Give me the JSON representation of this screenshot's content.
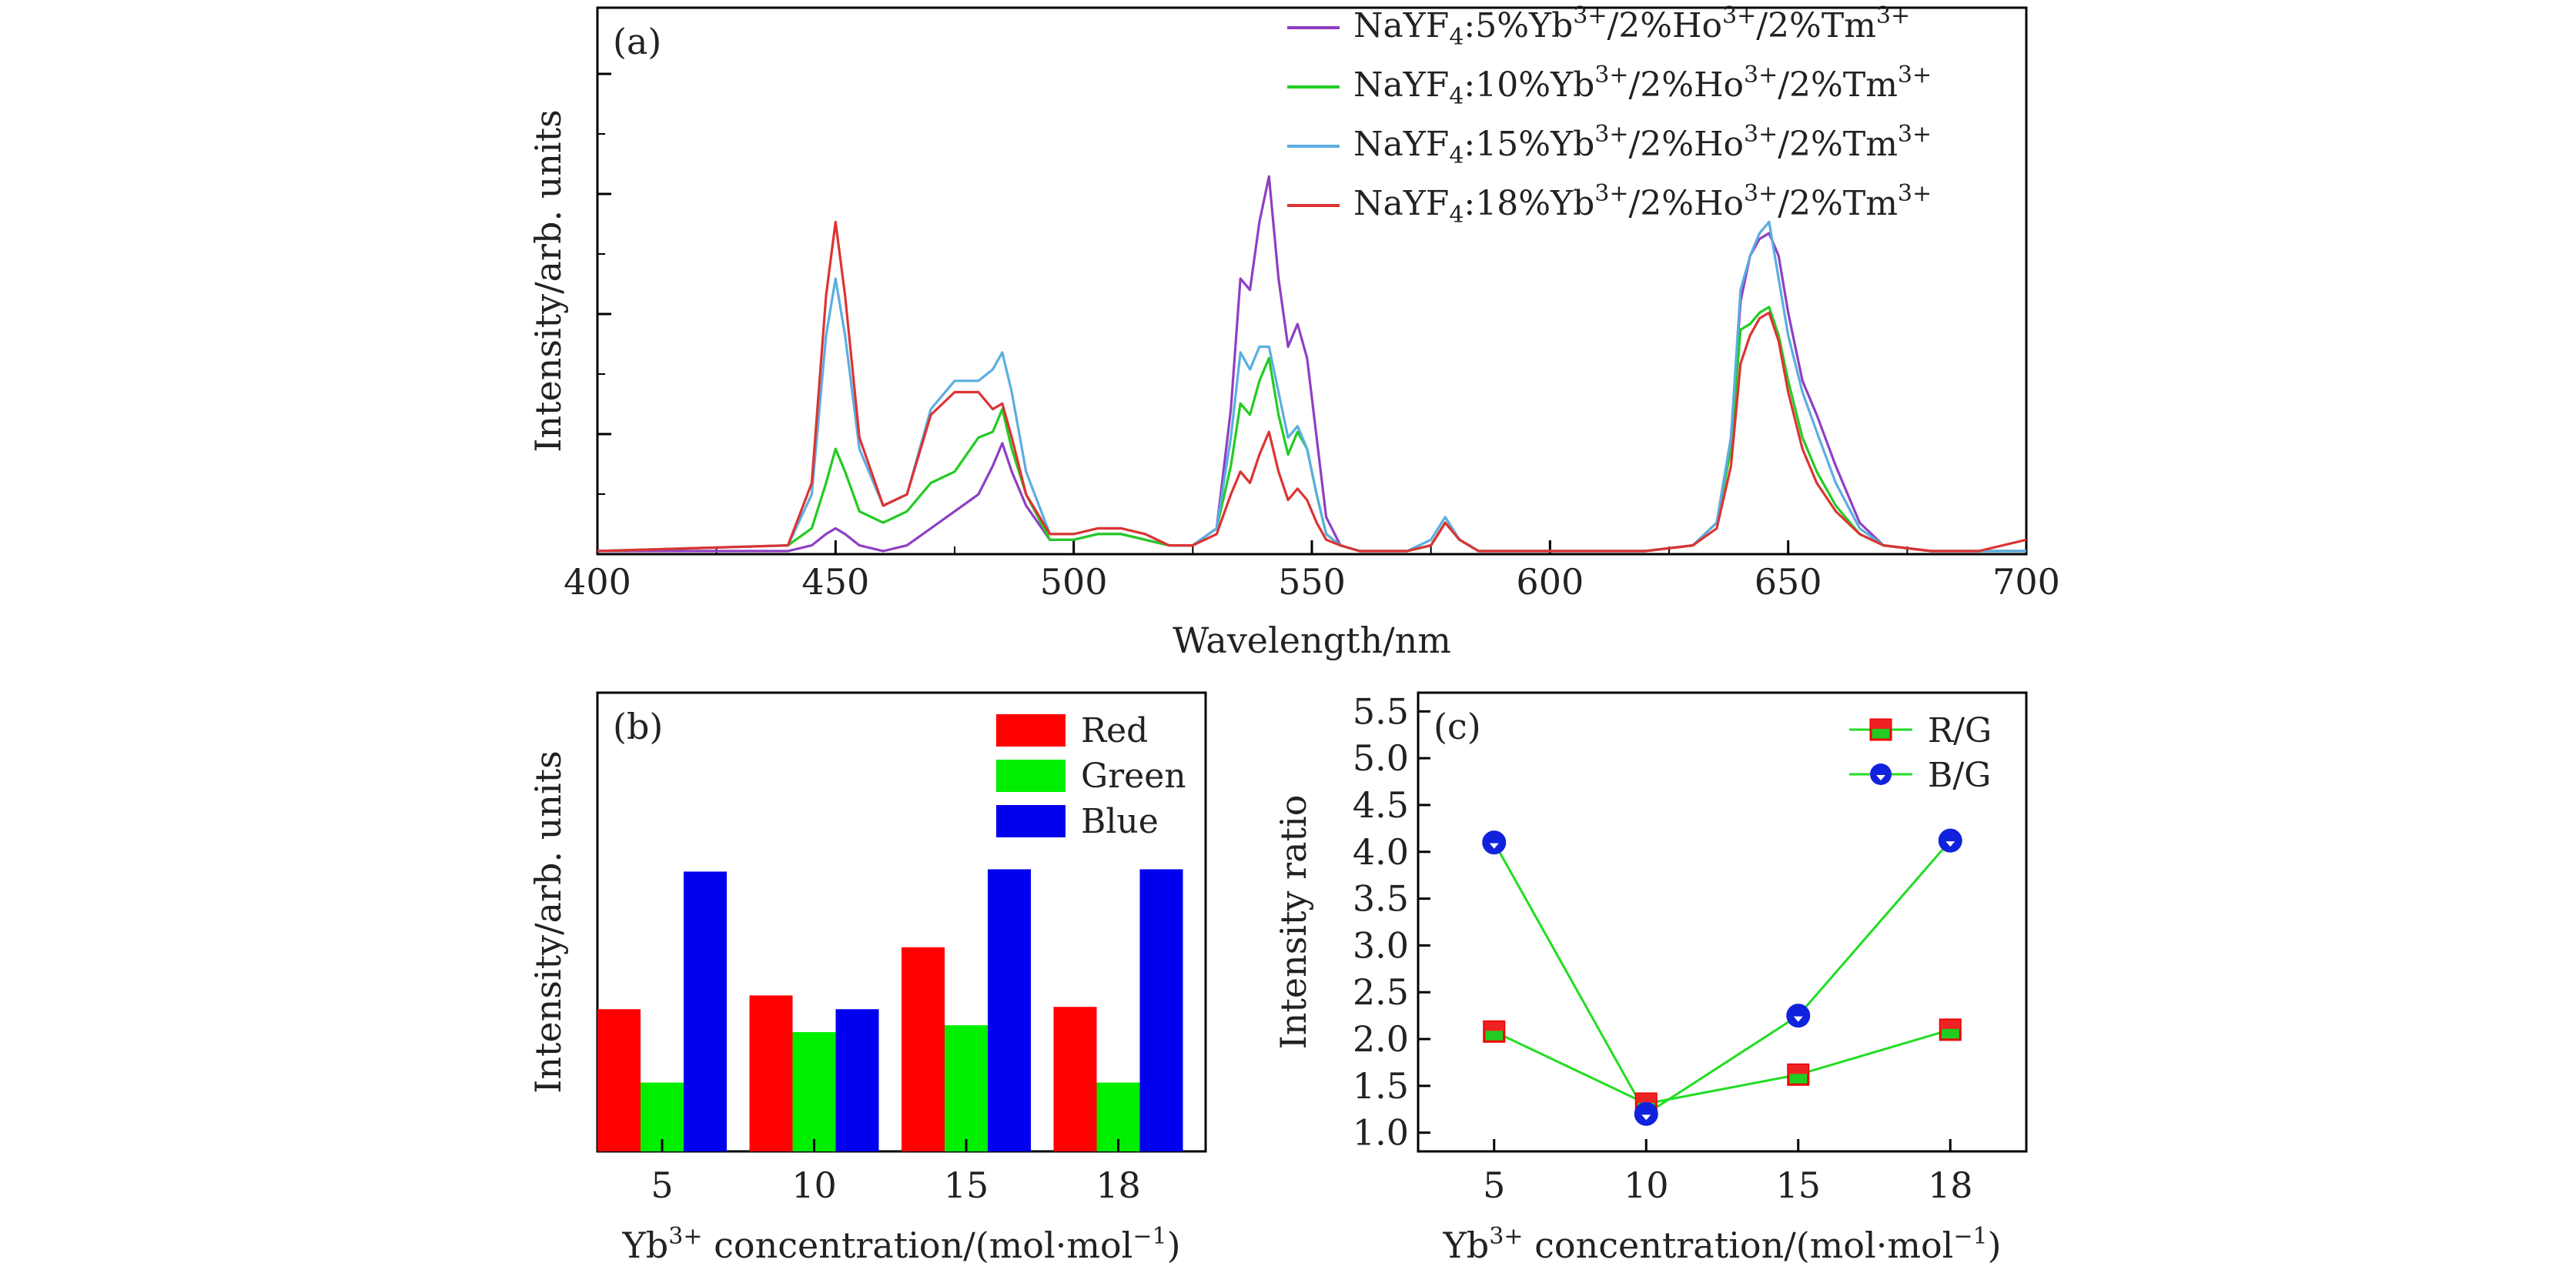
{
  "chart_data": [
    {
      "panel": "(a)",
      "type": "line",
      "xlabel": "Wavelength/nm",
      "ylabel": "Intensity/arb. units",
      "xlim": [
        400,
        700
      ],
      "ylim": [
        0,
        1.0
      ],
      "xticks": [
        400,
        450,
        500,
        550,
        600,
        650,
        700
      ],
      "legend_position": "top-right",
      "series": [
        {
          "name": "NaYF4:5%Yb3+/2%Ho3+/2%Tm3+",
          "legend": {
            "base": "NaYF",
            "sub": "4",
            "mid1": ":5%Yb",
            "sup1": "3+",
            "mid2": "/2%Ho",
            "sup2": "3+",
            "mid3": "/2%Tm",
            "sup3": "3+"
          },
          "color": "#8e3fc4",
          "x": [
            400,
            440,
            445,
            448,
            450,
            452,
            455,
            460,
            465,
            470,
            475,
            480,
            483,
            485,
            487,
            490,
            495,
            500,
            505,
            510,
            515,
            520,
            525,
            530,
            533,
            535,
            537,
            539,
            541,
            543,
            545,
            547,
            549,
            551,
            553,
            556,
            560,
            570,
            575,
            578,
            581,
            585,
            590,
            600,
            620,
            630,
            635,
            638,
            640,
            642,
            644,
            646,
            648,
            650,
            653,
            656,
            660,
            665,
            670,
            680,
            690,
            700
          ],
          "y": [
            0.0,
            0.0,
            0.01,
            0.03,
            0.04,
            0.03,
            0.01,
            0.0,
            0.01,
            0.04,
            0.07,
            0.1,
            0.15,
            0.19,
            0.14,
            0.08,
            0.02,
            0.02,
            0.03,
            0.03,
            0.02,
            0.01,
            0.01,
            0.04,
            0.25,
            0.48,
            0.46,
            0.58,
            0.66,
            0.48,
            0.36,
            0.4,
            0.34,
            0.2,
            0.06,
            0.01,
            0.0,
            0.0,
            0.01,
            0.05,
            0.02,
            0.0,
            0.0,
            0.0,
            0.0,
            0.01,
            0.05,
            0.2,
            0.44,
            0.52,
            0.55,
            0.56,
            0.52,
            0.42,
            0.3,
            0.24,
            0.15,
            0.05,
            0.01,
            0.0,
            0.0,
            0.0
          ]
        },
        {
          "name": "NaYF4:10%Yb3+/2%Ho3+/2%Tm3+",
          "legend": {
            "base": "NaYF",
            "sub": "4",
            "mid1": ":10%Yb",
            "sup1": "3+",
            "mid2": "/2%Ho",
            "sup2": "3+",
            "mid3": "/2%Tm",
            "sup3": "3+"
          },
          "color": "#22cc22",
          "x": [
            400,
            440,
            445,
            448,
            450,
            452,
            455,
            460,
            465,
            470,
            475,
            480,
            483,
            485,
            487,
            490,
            495,
            500,
            505,
            510,
            515,
            520,
            525,
            530,
            533,
            535,
            537,
            539,
            541,
            543,
            545,
            547,
            549,
            551,
            553,
            556,
            560,
            570,
            575,
            578,
            581,
            585,
            590,
            600,
            620,
            630,
            635,
            638,
            640,
            642,
            644,
            646,
            648,
            650,
            653,
            656,
            660,
            665,
            670,
            680,
            690,
            700
          ],
          "y": [
            0.0,
            0.01,
            0.04,
            0.12,
            0.18,
            0.14,
            0.07,
            0.05,
            0.07,
            0.12,
            0.14,
            0.2,
            0.21,
            0.25,
            0.18,
            0.1,
            0.02,
            0.02,
            0.03,
            0.03,
            0.02,
            0.01,
            0.01,
            0.04,
            0.15,
            0.26,
            0.24,
            0.3,
            0.34,
            0.24,
            0.17,
            0.21,
            0.18,
            0.1,
            0.03,
            0.01,
            0.0,
            0.0,
            0.01,
            0.05,
            0.02,
            0.0,
            0.0,
            0.0,
            0.0,
            0.01,
            0.05,
            0.18,
            0.39,
            0.4,
            0.42,
            0.43,
            0.38,
            0.3,
            0.2,
            0.14,
            0.08,
            0.03,
            0.01,
            0.0,
            0.0,
            0.0
          ]
        },
        {
          "name": "NaYF4:15%Yb3+/2%Ho3+/2%Tm3+",
          "legend": {
            "base": "NaYF",
            "sub": "4",
            "mid1": ":15%Yb",
            "sup1": "3+",
            "mid2": "/2%Ho",
            "sup2": "3+",
            "mid3": "/2%Tm",
            "sup3": "3+"
          },
          "color": "#5aaee0",
          "x": [
            400,
            440,
            445,
            448,
            450,
            452,
            455,
            460,
            465,
            470,
            475,
            480,
            483,
            485,
            487,
            490,
            495,
            500,
            505,
            510,
            515,
            520,
            525,
            530,
            533,
            535,
            537,
            539,
            541,
            543,
            545,
            547,
            549,
            551,
            553,
            556,
            560,
            570,
            575,
            578,
            581,
            585,
            590,
            600,
            620,
            630,
            635,
            638,
            640,
            642,
            644,
            646,
            648,
            650,
            653,
            656,
            660,
            665,
            670,
            680,
            690,
            700
          ],
          "y": [
            0.0,
            0.01,
            0.1,
            0.38,
            0.48,
            0.38,
            0.18,
            0.08,
            0.1,
            0.25,
            0.3,
            0.3,
            0.32,
            0.35,
            0.28,
            0.14,
            0.03,
            0.03,
            0.04,
            0.04,
            0.03,
            0.01,
            0.01,
            0.04,
            0.2,
            0.35,
            0.32,
            0.36,
            0.36,
            0.28,
            0.2,
            0.22,
            0.18,
            0.1,
            0.03,
            0.01,
            0.0,
            0.0,
            0.02,
            0.06,
            0.02,
            0.0,
            0.0,
            0.0,
            0.0,
            0.01,
            0.05,
            0.2,
            0.46,
            0.52,
            0.56,
            0.58,
            0.48,
            0.38,
            0.28,
            0.21,
            0.12,
            0.04,
            0.01,
            0.0,
            0.0,
            0.0
          ]
        },
        {
          "name": "NaYF4:18%Yb3+/2%Ho3+/2%Tm3+",
          "legend": {
            "base": "NaYF",
            "sub": "4",
            "mid1": ":18%Yb",
            "sup1": "3+",
            "mid2": "/2%Ho",
            "sup2": "3+",
            "mid3": "/2%Tm",
            "sup3": "3+"
          },
          "color": "#dd3333",
          "x": [
            400,
            440,
            445,
            448,
            450,
            452,
            455,
            460,
            465,
            470,
            475,
            480,
            483,
            485,
            487,
            490,
            495,
            500,
            505,
            510,
            515,
            520,
            525,
            530,
            533,
            535,
            537,
            539,
            541,
            543,
            545,
            547,
            549,
            551,
            553,
            556,
            560,
            570,
            575,
            578,
            581,
            585,
            590,
            600,
            620,
            630,
            635,
            638,
            640,
            642,
            644,
            646,
            648,
            650,
            653,
            656,
            660,
            665,
            670,
            680,
            690,
            700
          ],
          "y": [
            0.0,
            0.01,
            0.12,
            0.45,
            0.58,
            0.45,
            0.2,
            0.08,
            0.1,
            0.24,
            0.28,
            0.28,
            0.25,
            0.26,
            0.2,
            0.1,
            0.03,
            0.03,
            0.04,
            0.04,
            0.03,
            0.01,
            0.01,
            0.03,
            0.1,
            0.14,
            0.12,
            0.17,
            0.21,
            0.14,
            0.09,
            0.11,
            0.09,
            0.05,
            0.02,
            0.01,
            0.0,
            0.0,
            0.01,
            0.05,
            0.02,
            0.0,
            0.0,
            0.0,
            0.0,
            0.01,
            0.04,
            0.15,
            0.33,
            0.38,
            0.41,
            0.42,
            0.37,
            0.28,
            0.18,
            0.12,
            0.07,
            0.03,
            0.01,
            0.0,
            0.0,
            0.02
          ]
        }
      ]
    },
    {
      "panel": "(b)",
      "type": "bar",
      "xlabel": {
        "base": "Yb",
        "sup": "3+",
        "rest": " concentration/(mol·mol",
        "exp": "−1",
        "close": ")"
      },
      "ylabel": "Intensity/arb. units",
      "categories": [
        "5",
        "10",
        "15",
        "18"
      ],
      "ylim": [
        0,
        1.0
      ],
      "legend_position": "top-right",
      "series": [
        {
          "name": "Red",
          "color": "#ff0000",
          "values": [
            0.31,
            0.34,
            0.445,
            0.315
          ]
        },
        {
          "name": "Green",
          "color": "#00ee00",
          "values": [
            0.15,
            0.26,
            0.275,
            0.15
          ]
        },
        {
          "name": "Blue",
          "color": "#0000ee",
          "values": [
            0.61,
            0.31,
            0.615,
            0.615
          ]
        }
      ]
    },
    {
      "panel": "(c)",
      "type": "line",
      "xlabel": {
        "base": "Yb",
        "sup": "3+",
        "rest": " concentration/(mol·mol",
        "exp": "−1",
        "close": ")"
      },
      "ylabel": "Intensity ratio",
      "categories": [
        "5",
        "10",
        "15",
        "18"
      ],
      "ylim": [
        0.8,
        5.7
      ],
      "yticks": [
        "1.0",
        "1.5",
        "2.0",
        "2.5",
        "3.0",
        "3.5",
        "4.0",
        "4.5",
        "5.0",
        "5.5"
      ],
      "legend_position": "top-right",
      "series": [
        {
          "name": "R/G",
          "marker": "square",
          "color": "#22dd22",
          "values": [
            2.08,
            1.31,
            1.62,
            2.1
          ]
        },
        {
          "name": "B/G",
          "marker": "circle",
          "color": "#22dd22",
          "values": [
            4.1,
            1.2,
            2.25,
            4.12
          ]
        }
      ]
    }
  ]
}
